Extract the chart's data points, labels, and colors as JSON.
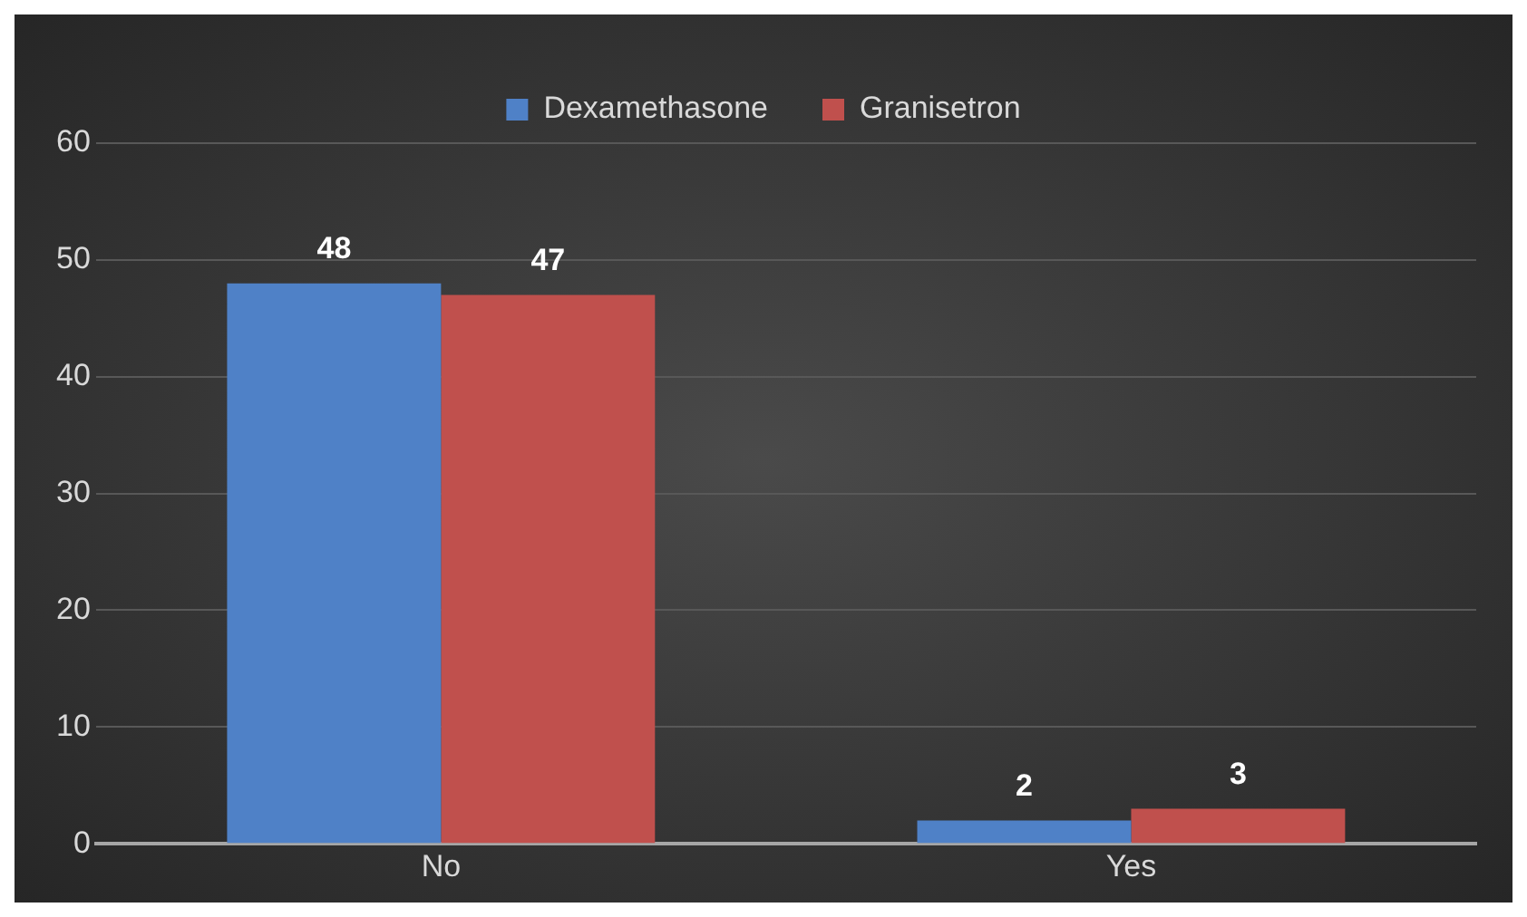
{
  "chart_data": {
    "type": "bar",
    "categories": [
      "No",
      "Yes"
    ],
    "series": [
      {
        "name": "Dexamethasone",
        "color": "#4f81c7",
        "values": [
          48,
          2
        ]
      },
      {
        "name": "Granisetron",
        "color": "#c0504d",
        "values": [
          47,
          3
        ]
      }
    ],
    "ylim": [
      0,
      60
    ],
    "yticks": [
      0,
      10,
      20,
      30,
      40,
      50,
      60
    ],
    "grid": "y",
    "legend": "top",
    "data_labels": true
  }
}
